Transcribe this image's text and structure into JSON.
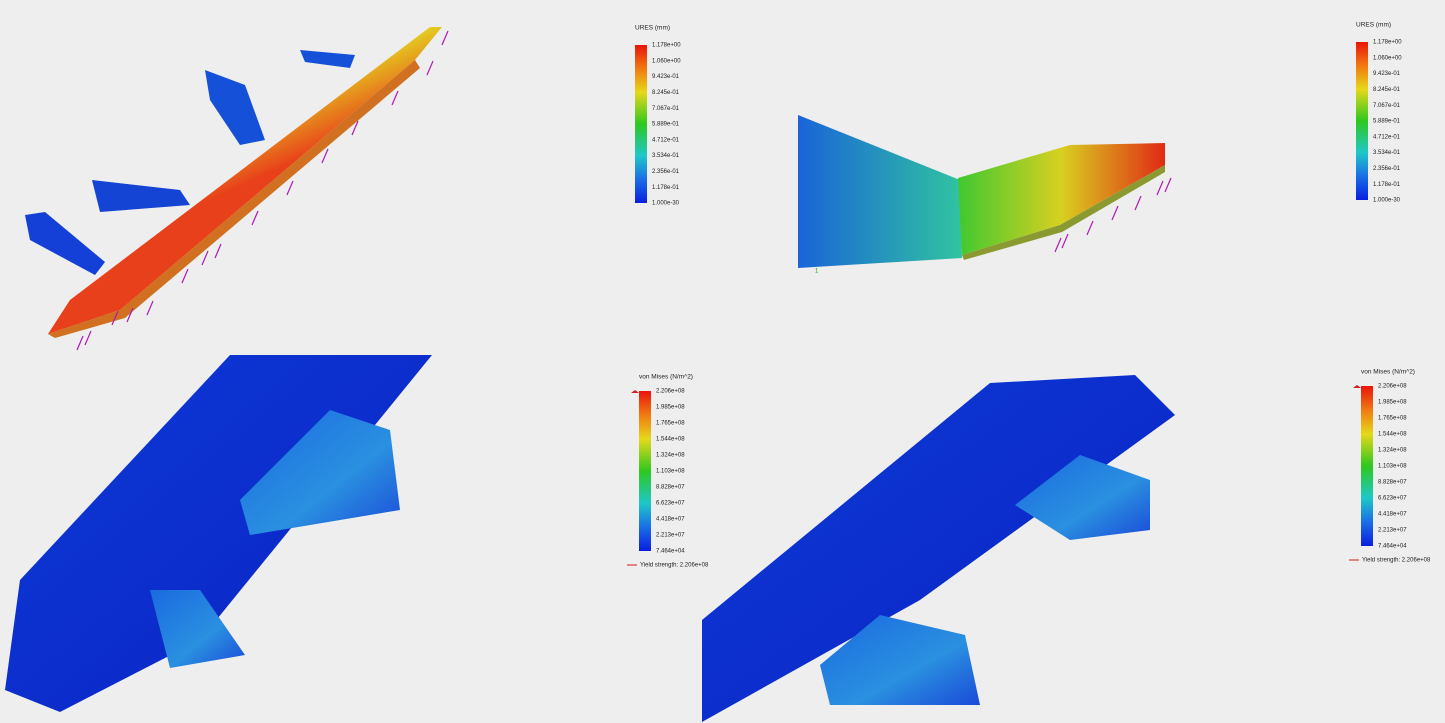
{
  "panels": [
    {
      "legend_title": "URES (mm)",
      "labels": [
        "1.178e+00",
        "1.060e+00",
        "9.423e-01",
        "8.245e-01",
        "7.067e-01",
        "5.889e-01",
        "4.712e-01",
        "3.534e-01",
        "2.356e-01",
        "1.178e-01",
        "1.000e-30"
      ]
    },
    {
      "legend_title": "URES (mm)",
      "labels": [
        "1.178e+00",
        "1.060e+00",
        "9.423e-01",
        "8.245e-01",
        "7.067e-01",
        "5.889e-01",
        "4.712e-01",
        "3.534e-01",
        "2.356e-01",
        "1.178e-01",
        "1.000e-30"
      ],
      "triad_label": "1"
    },
    {
      "legend_title": "von Mises (N/m^2)",
      "labels": [
        "2.206e+08",
        "1.985e+08",
        "1.765e+08",
        "1.544e+08",
        "1.324e+08",
        "1.103e+08",
        "8.828e+07",
        "6.623e+07",
        "4.418e+07",
        "2.213e+07",
        "7.464e+04"
      ],
      "yield_label": "Yield strength: 2.206e+08"
    },
    {
      "legend_title": "von Mises (N/m^2)",
      "labels": [
        "2.206e+08",
        "1.985e+08",
        "1.765e+08",
        "1.544e+08",
        "1.324e+08",
        "1.103e+08",
        "8.828e+07",
        "6.623e+07",
        "4.418e+07",
        "2.213e+07",
        "7.464e+04"
      ],
      "yield_label": "Yield strength: 2.206e+08"
    }
  ]
}
